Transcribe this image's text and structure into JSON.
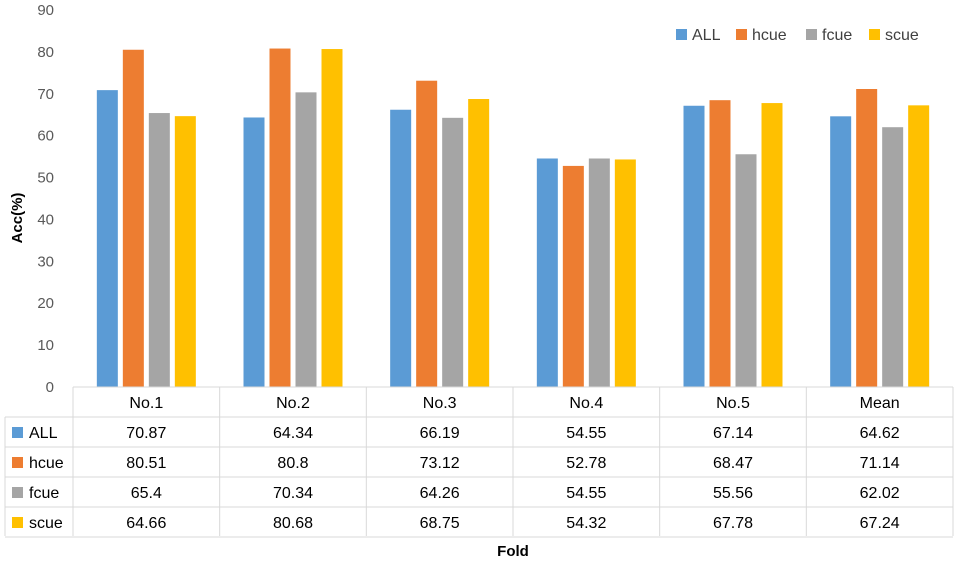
{
  "chart_data": {
    "type": "bar",
    "title": "",
    "xlabel": "Fold",
    "ylabel": "Acc(%)",
    "ylim": [
      0,
      90
    ],
    "yticks": [
      0,
      10,
      20,
      30,
      40,
      50,
      60,
      70,
      80,
      90
    ],
    "grid": false,
    "legend_position": "top-right",
    "categories": [
      "No.1",
      "No.2",
      "No.3",
      "No.4",
      "No.5",
      "Mean"
    ],
    "series": [
      {
        "name": "ALL",
        "color": "#5B9BD5",
        "values": [
          70.87,
          64.34,
          66.19,
          54.55,
          67.14,
          64.62
        ]
      },
      {
        "name": "hcue",
        "color": "#ED7D31",
        "values": [
          80.51,
          80.8,
          73.12,
          52.78,
          68.47,
          71.14
        ]
      },
      {
        "name": "fcue",
        "color": "#A5A5A5",
        "values": [
          65.4,
          70.34,
          64.26,
          54.55,
          55.56,
          62.02
        ]
      },
      {
        "name": "scue",
        "color": "#FFC000",
        "values": [
          64.66,
          80.68,
          68.75,
          54.32,
          67.78,
          67.24
        ]
      }
    ],
    "data_table": true
  }
}
